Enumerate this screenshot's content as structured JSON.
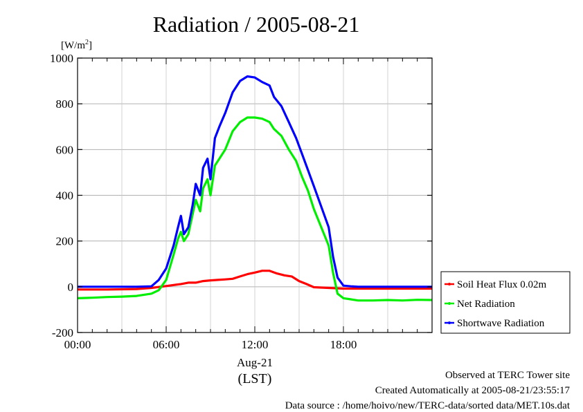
{
  "chart_data": {
    "type": "line",
    "title": "Radiation / 2005-08-21",
    "ylabel_unit": "[W/m",
    "ylabel_sup": "2",
    "ylabel_close": "]",
    "ylim": [
      -200,
      1000
    ],
    "yticks": [
      "-200",
      "0",
      "200",
      "400",
      "600",
      "800",
      "1000"
    ],
    "xlim": [
      0,
      24
    ],
    "xticks": [
      {
        "hour": 0,
        "label": "00:00"
      },
      {
        "hour": 6,
        "label": "06:00"
      },
      {
        "hour": 12,
        "label": "12:00"
      },
      {
        "hour": 18,
        "label": "18:00"
      }
    ],
    "xdate_label": "Aug-21",
    "xtz_label": "(LST)",
    "grid": true,
    "legend_position": "right",
    "series": [
      {
        "name": "Soil Heat Flux 0.02m",
        "color": "#ff0000",
        "points": [
          [
            0,
            -12
          ],
          [
            2,
            -12
          ],
          [
            4,
            -10
          ],
          [
            5,
            -5
          ],
          [
            6,
            3
          ],
          [
            7,
            12
          ],
          [
            7.5,
            18
          ],
          [
            8,
            18
          ],
          [
            8.5,
            25
          ],
          [
            9,
            28
          ],
          [
            9.5,
            30
          ],
          [
            10,
            32
          ],
          [
            10.5,
            35
          ],
          [
            11,
            45
          ],
          [
            11.5,
            55
          ],
          [
            12,
            62
          ],
          [
            12.5,
            70
          ],
          [
            13,
            70
          ],
          [
            13.5,
            58
          ],
          [
            14,
            50
          ],
          [
            14.5,
            45
          ],
          [
            15,
            25
          ],
          [
            15.5,
            12
          ],
          [
            16,
            -2
          ],
          [
            17,
            -5
          ],
          [
            18,
            -8
          ],
          [
            20,
            -8
          ],
          [
            24,
            -8
          ]
        ]
      },
      {
        "name": "Net Radiation",
        "color": "#00ee00",
        "points": [
          [
            0,
            -50
          ],
          [
            1,
            -48
          ],
          [
            2,
            -45
          ],
          [
            3,
            -43
          ],
          [
            4,
            -40
          ],
          [
            4.5,
            -35
          ],
          [
            5,
            -30
          ],
          [
            5.5,
            -15
          ],
          [
            6,
            30
          ],
          [
            6.5,
            140
          ],
          [
            6.8,
            210
          ],
          [
            7,
            240
          ],
          [
            7.2,
            200
          ],
          [
            7.5,
            230
          ],
          [
            7.8,
            320
          ],
          [
            8,
            380
          ],
          [
            8.3,
            330
          ],
          [
            8.5,
            430
          ],
          [
            8.8,
            470
          ],
          [
            9,
            400
          ],
          [
            9.3,
            530
          ],
          [
            9.6,
            560
          ],
          [
            10,
            600
          ],
          [
            10.5,
            680
          ],
          [
            11,
            720
          ],
          [
            11.5,
            740
          ],
          [
            12,
            740
          ],
          [
            12.5,
            735
          ],
          [
            13,
            720
          ],
          [
            13.3,
            690
          ],
          [
            13.8,
            660
          ],
          [
            14.3,
            600
          ],
          [
            14.8,
            550
          ],
          [
            15.2,
            480
          ],
          [
            15.6,
            420
          ],
          [
            16,
            340
          ],
          [
            16.5,
            260
          ],
          [
            17,
            180
          ],
          [
            17.3,
            60
          ],
          [
            17.6,
            -30
          ],
          [
            18,
            -50
          ],
          [
            18.5,
            -55
          ],
          [
            19,
            -60
          ],
          [
            20,
            -60
          ],
          [
            21,
            -58
          ],
          [
            22,
            -60
          ],
          [
            23,
            -57
          ],
          [
            24,
            -58
          ]
        ]
      },
      {
        "name": "Shortwave Radiation",
        "color": "#0000ff",
        "points": [
          [
            0,
            0
          ],
          [
            1,
            0
          ],
          [
            2,
            0
          ],
          [
            3,
            0
          ],
          [
            4,
            0
          ],
          [
            5,
            2
          ],
          [
            5.5,
            30
          ],
          [
            6,
            80
          ],
          [
            6.5,
            180
          ],
          [
            6.8,
            260
          ],
          [
            7,
            310
          ],
          [
            7.2,
            230
          ],
          [
            7.5,
            260
          ],
          [
            7.8,
            360
          ],
          [
            8,
            450
          ],
          [
            8.3,
            400
          ],
          [
            8.5,
            520
          ],
          [
            8.8,
            560
          ],
          [
            9,
            470
          ],
          [
            9.3,
            650
          ],
          [
            9.6,
            700
          ],
          [
            10,
            760
          ],
          [
            10.5,
            850
          ],
          [
            11,
            900
          ],
          [
            11.5,
            920
          ],
          [
            12,
            915
          ],
          [
            12.5,
            895
          ],
          [
            13,
            880
          ],
          [
            13.3,
            830
          ],
          [
            13.8,
            790
          ],
          [
            14.3,
            720
          ],
          [
            14.8,
            650
          ],
          [
            15.2,
            580
          ],
          [
            15.6,
            510
          ],
          [
            16,
            440
          ],
          [
            16.5,
            350
          ],
          [
            17,
            260
          ],
          [
            17.3,
            130
          ],
          [
            17.6,
            40
          ],
          [
            18,
            5
          ],
          [
            18.5,
            2
          ],
          [
            19,
            0
          ],
          [
            20,
            0
          ],
          [
            22,
            0
          ],
          [
            24,
            0
          ]
        ]
      }
    ]
  },
  "footer": {
    "site": "Observed at TERC Tower site",
    "created": "Created Automatically at 2005-08-21/23:55:17",
    "source": "Data source : /home/hoivo/new/TERC-data/sorted  data/MET.10s.dat"
  }
}
